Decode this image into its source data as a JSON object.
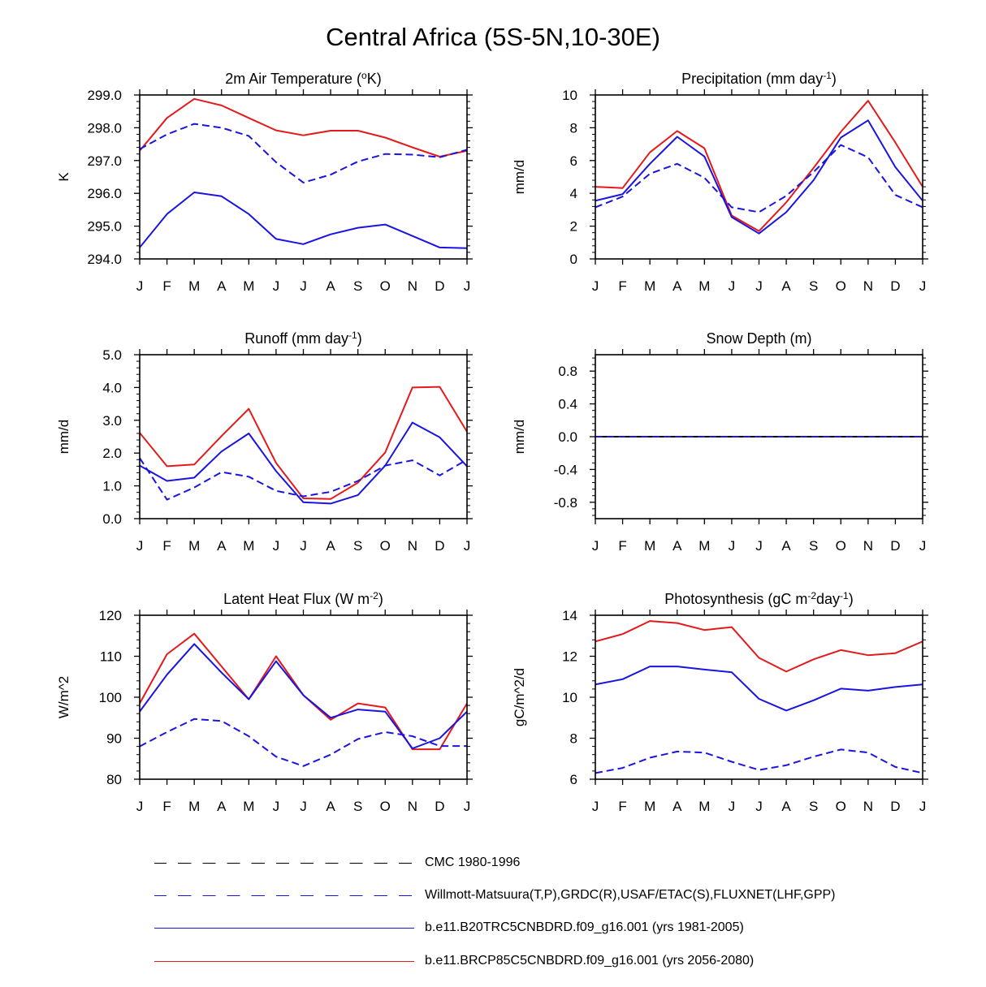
{
  "figure_title": "Central Africa (5S-5N,10-30E)",
  "colors": {
    "red": "#e31a1c",
    "blue": "#1a14e0",
    "black": "#000000"
  },
  "months": [
    "J",
    "F",
    "M",
    "A",
    "M",
    "J",
    "J",
    "A",
    "S",
    "O",
    "N",
    "D",
    "J"
  ],
  "legend": [
    {
      "label": "CMC 1980-1996",
      "color": "#000000",
      "dash": "dashed"
    },
    {
      "label": "Willmott-Matsuura(T,P),GRDC(R),USAF/ETAC(S),FLUXNET(LHF,GPP)",
      "color": "#1a14e0",
      "dash": "dashed"
    },
    {
      "label": "b.e11.B20TRC5CNBDRD.f09_g16.001 (yrs 1981-2005)",
      "color": "#1a14e0",
      "dash": "solid"
    },
    {
      "label": "b.e11.BRCP85C5CNBDRD.f09_g16.001 (yrs 2056-2080)",
      "color": "#e31a1c",
      "dash": "solid"
    }
  ],
  "chart_data": [
    {
      "type": "line",
      "title": "2m Air Temperature (°K)",
      "title_parts": [
        {
          "t": "2m Air Temperature ("
        },
        {
          "t": "o",
          "sup": true
        },
        {
          "t": "K)"
        }
      ],
      "ylabel": "K",
      "ylim": [
        294,
        299
      ],
      "yticks": [
        294.0,
        295.0,
        296.0,
        297.0,
        298.0,
        299.0
      ],
      "ytick_labels": [
        "294.0",
        "295.0",
        "296.0",
        "297.0",
        "298.0",
        "299.0"
      ],
      "categories": [
        "J",
        "F",
        "M",
        "A",
        "M",
        "J",
        "J",
        "A",
        "S",
        "O",
        "N",
        "D",
        "J"
      ],
      "series": [
        {
          "name": "b.e11.BRCP85C5CNBDRD.f09_g16.001 (yrs 2056-2080)",
          "color": "red",
          "dash": "solid",
          "values": [
            297.3,
            298.3,
            298.88,
            298.68,
            298.3,
            297.92,
            297.77,
            297.91,
            297.91,
            297.7,
            297.4,
            297.12,
            297.3
          ]
        },
        {
          "name": "b.e11.B20TRC5CNBDRD.f09_g16.001 (yrs 1981-2005)",
          "color": "blue",
          "dash": "solid",
          "values": [
            294.35,
            295.37,
            296.03,
            295.91,
            295.37,
            294.61,
            294.45,
            294.75,
            294.95,
            295.05,
            294.7,
            294.35,
            294.33
          ]
        },
        {
          "name": "Willmott-Matsuura(T,P),GRDC(R),USAF/ETAC(S),FLUXNET(LHF,GPP)",
          "color": "blue",
          "dash": "dashed",
          "values": [
            297.35,
            297.8,
            298.12,
            298.0,
            297.75,
            296.95,
            296.33,
            296.57,
            296.97,
            297.2,
            297.18,
            297.1,
            297.33
          ]
        }
      ]
    },
    {
      "type": "line",
      "title": "Precipitation (mm day-1)",
      "title_parts": [
        {
          "t": "Precipitation (mm day"
        },
        {
          "t": "-1",
          "sup": true
        },
        {
          "t": ")"
        }
      ],
      "ylabel": "mm/d",
      "ylim": [
        0,
        10
      ],
      "yticks": [
        0,
        2,
        4,
        6,
        8,
        10
      ],
      "ytick_labels": [
        "0",
        "2",
        "4",
        "6",
        "8",
        "10"
      ],
      "categories": [
        "J",
        "F",
        "M",
        "A",
        "M",
        "J",
        "J",
        "A",
        "S",
        "O",
        "N",
        "D",
        "J"
      ],
      "series": [
        {
          "name": "b.e11.BRCP85C5CNBDRD.f09_g16.001 (yrs 2056-2080)",
          "color": "red",
          "dash": "solid",
          "values": [
            4.4,
            4.32,
            6.5,
            7.8,
            6.75,
            2.65,
            1.7,
            3.45,
            5.55,
            7.75,
            9.65,
            7.1,
            4.4
          ]
        },
        {
          "name": "b.e11.B20TRC5CNBDRD.f09_g16.001 (yrs 1981-2005)",
          "color": "blue",
          "dash": "solid",
          "values": [
            3.55,
            3.95,
            5.8,
            7.45,
            6.25,
            2.55,
            1.55,
            2.85,
            4.8,
            7.4,
            8.45,
            5.6,
            3.55
          ]
        },
        {
          "name": "Willmott-Matsuura(T,P),GRDC(R),USAF/ETAC(S),FLUXNET(LHF,GPP)",
          "color": "blue",
          "dash": "dashed",
          "values": [
            3.15,
            3.8,
            5.2,
            5.8,
            4.95,
            3.15,
            2.85,
            3.85,
            5.3,
            6.95,
            6.2,
            3.9,
            3.15
          ]
        }
      ]
    },
    {
      "type": "line",
      "title": "Runoff (mm day-1)",
      "title_parts": [
        {
          "t": "Runoff (mm day"
        },
        {
          "t": "-1",
          "sup": true
        },
        {
          "t": ")"
        }
      ],
      "ylabel": "mm/d",
      "ylim": [
        0,
        5
      ],
      "yticks": [
        0,
        1,
        2,
        3,
        4,
        5
      ],
      "ytick_labels": [
        "0.0",
        "1.0",
        "2.0",
        "3.0",
        "4.0",
        "5.0"
      ],
      "categories": [
        "J",
        "F",
        "M",
        "A",
        "M",
        "J",
        "J",
        "A",
        "S",
        "O",
        "N",
        "D",
        "J"
      ],
      "series": [
        {
          "name": "b.e11.BRCP85C5CNBDRD.f09_g16.001 (yrs 2056-2080)",
          "color": "red",
          "dash": "solid",
          "values": [
            2.62,
            1.6,
            1.65,
            2.52,
            3.35,
            1.7,
            0.62,
            0.6,
            1.1,
            2.02,
            4.0,
            4.02,
            2.65
          ]
        },
        {
          "name": "b.e11.B20TRC5CNBDRD.f09_g16.001 (yrs 1981-2005)",
          "color": "blue",
          "dash": "solid",
          "values": [
            1.62,
            1.15,
            1.25,
            2.05,
            2.6,
            1.45,
            0.5,
            0.46,
            0.72,
            1.62,
            2.93,
            2.48,
            1.6
          ]
        },
        {
          "name": "Willmott-Matsuura(T,P),GRDC(R),USAF/ETAC(S),FLUXNET(LHF,GPP)",
          "color": "blue",
          "dash": "dashed",
          "values": [
            1.85,
            0.58,
            0.95,
            1.42,
            1.28,
            0.85,
            0.68,
            0.82,
            1.15,
            1.62,
            1.78,
            1.32,
            1.8
          ]
        }
      ]
    },
    {
      "type": "line",
      "title": "Snow Depth (m)",
      "title_parts": [
        {
          "t": "Snow Depth (m)"
        }
      ],
      "ylabel": "mm/d",
      "ylim": [
        -1,
        1
      ],
      "yticks": [
        -0.8,
        -0.4,
        0.0,
        0.4,
        0.8
      ],
      "ytick_labels": [
        "-0.8",
        "-0.4",
        "0.0",
        "0.4",
        "0.8"
      ],
      "categories": [
        "J",
        "F",
        "M",
        "A",
        "M",
        "J",
        "J",
        "A",
        "S",
        "O",
        "N",
        "D",
        "J"
      ],
      "series": [
        {
          "name": "CMC 1980-1996",
          "color": "black",
          "dash": "solid",
          "values": [
            0,
            0,
            0,
            0,
            0,
            0,
            0,
            0,
            0,
            0,
            0,
            0,
            0
          ]
        },
        {
          "name": "Willmott-Matsuura(T,P),GRDC(R),USAF/ETAC(S),FLUXNET(LHF,GPP)",
          "color": "blue",
          "dash": "dashed",
          "values": [
            0,
            0,
            0,
            0,
            0,
            0,
            0,
            0,
            0,
            0,
            0,
            0,
            0
          ]
        }
      ]
    },
    {
      "type": "line",
      "title": "Latent Heat Flux (W m-2)",
      "title_parts": [
        {
          "t": "Latent Heat Flux (W m"
        },
        {
          "t": "-2",
          "sup": true
        },
        {
          "t": ")"
        }
      ],
      "ylabel": "W/m^2",
      "ylim": [
        80,
        120
      ],
      "yticks": [
        80,
        90,
        100,
        110,
        120
      ],
      "ytick_labels": [
        "80",
        "90",
        "100",
        "110",
        "120"
      ],
      "categories": [
        "J",
        "F",
        "M",
        "A",
        "M",
        "J",
        "J",
        "A",
        "S",
        "O",
        "N",
        "D",
        "J"
      ],
      "series": [
        {
          "name": "b.e11.BRCP85C5CNBDRD.f09_g16.001 (yrs 2056-2080)",
          "color": "red",
          "dash": "solid",
          "values": [
            98.5,
            110.5,
            115.5,
            107.5,
            99.5,
            110.0,
            100.5,
            94.5,
            98.5,
            97.5,
            87.3,
            87.3,
            98.5
          ]
        },
        {
          "name": "b.e11.B20TRC5CNBDRD.f09_g16.001 (yrs 1981-2005)",
          "color": "blue",
          "dash": "solid",
          "values": [
            96.5,
            105.5,
            113.0,
            106.0,
            99.5,
            108.8,
            100.5,
            95.0,
            97.0,
            96.5,
            87.5,
            90.0,
            96.5
          ]
        },
        {
          "name": "Willmott-Matsuura(T,P),GRDC(R),USAF/ETAC(S),FLUXNET(LHF,GPP)",
          "color": "blue",
          "dash": "dashed",
          "values": [
            88.0,
            91.5,
            94.7,
            94.2,
            90.5,
            85.5,
            83.2,
            86.0,
            89.8,
            91.5,
            90.5,
            88.1,
            88.1
          ]
        }
      ]
    },
    {
      "type": "line",
      "title": "Photosynthesis (gC m-2day-1)",
      "title_parts": [
        {
          "t": "Photosynthesis (gC m"
        },
        {
          "t": "-2",
          "sup": true
        },
        {
          "t": "day"
        },
        {
          "t": "-1",
          "sup": true
        },
        {
          "t": ")"
        }
      ],
      "ylabel": "gC/m^2/d",
      "ylim": [
        6,
        14
      ],
      "yticks": [
        6,
        8,
        10,
        12,
        14
      ],
      "ytick_labels": [
        "6",
        "8",
        "10",
        "12",
        "14"
      ],
      "categories": [
        "J",
        "F",
        "M",
        "A",
        "M",
        "J",
        "J",
        "A",
        "S",
        "O",
        "N",
        "D",
        "J"
      ],
      "series": [
        {
          "name": "b.e11.BRCP85C5CNBDRD.f09_g16.001 (yrs 2056-2080)",
          "color": "red",
          "dash": "solid",
          "values": [
            12.72,
            13.08,
            13.72,
            13.62,
            13.28,
            13.42,
            11.92,
            11.25,
            11.85,
            12.3,
            12.05,
            12.15,
            12.72
          ]
        },
        {
          "name": "b.e11.B20TRC5CNBDRD.f09_g16.001 (yrs 1981-2005)",
          "color": "blue",
          "dash": "solid",
          "values": [
            10.62,
            10.88,
            11.5,
            11.5,
            11.35,
            11.22,
            9.92,
            9.35,
            9.85,
            10.42,
            10.32,
            10.5,
            10.62
          ]
        },
        {
          "name": "Willmott-Matsuura(T,P),GRDC(R),USAF/ETAC(S),FLUXNET(LHF,GPP)",
          "color": "blue",
          "dash": "dashed",
          "values": [
            6.3,
            6.55,
            7.05,
            7.35,
            7.3,
            6.85,
            6.45,
            6.68,
            7.1,
            7.45,
            7.3,
            6.6,
            6.3
          ]
        }
      ]
    }
  ]
}
